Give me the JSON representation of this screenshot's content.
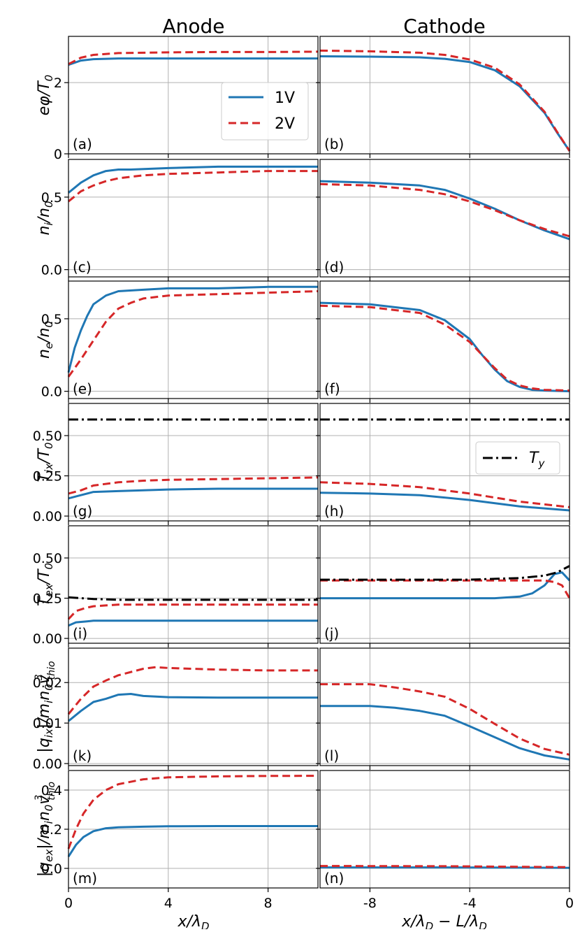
{
  "column_titles": [
    "Anode",
    "Cathode"
  ],
  "x_labels": [
    "x/λ_D",
    "x/λ_D − L/λ_D"
  ],
  "row_ylabels": [
    "eφ/T_0",
    "n_i/n_0",
    "n_e/n_0",
    "T_ix/T_0",
    "T_ex/T_0",
    "|q_ix|/m_i n_0 v^3_thio",
    "|q_ex|/m_i n_0 v^3_thio"
  ],
  "legends": {
    "main": [
      "1V",
      "2V"
    ],
    "ty": "T_y"
  },
  "colors": {
    "1V": "#1f77b4",
    "2V": "#d62728",
    "Ty": "#000000"
  },
  "chart_data": [
    {
      "type": "line",
      "panel_label": "(a)",
      "xlim": [
        0,
        10
      ],
      "ylim": [
        0,
        3.3
      ],
      "yticks": [
        "0",
        "2"
      ],
      "ytick_values": [
        0,
        2
      ],
      "series": [
        {
          "name": "1V",
          "x": [
            0,
            0.5,
            1,
            2,
            4,
            6,
            8,
            10
          ],
          "y": [
            2.5,
            2.62,
            2.66,
            2.68,
            2.68,
            2.68,
            2.68,
            2.68
          ]
        },
        {
          "name": "2V",
          "x": [
            0,
            0.5,
            1,
            2,
            4,
            6,
            8,
            10
          ],
          "y": [
            2.52,
            2.7,
            2.78,
            2.83,
            2.85,
            2.86,
            2.86,
            2.87
          ]
        }
      ]
    },
    {
      "type": "line",
      "panel_label": "(b)",
      "xlim": [
        -10,
        0
      ],
      "ylim": [
        0,
        3.3
      ],
      "yticks": [
        "0",
        "2"
      ],
      "ytick_values": [
        0,
        2
      ],
      "series": [
        {
          "name": "1V",
          "x": [
            -10,
            -8,
            -6,
            -5,
            -4,
            -3,
            -2,
            -1,
            -0.5,
            0
          ],
          "y": [
            2.74,
            2.73,
            2.71,
            2.67,
            2.58,
            2.35,
            1.9,
            1.15,
            0.6,
            0.08
          ]
        },
        {
          "name": "2V",
          "x": [
            -10,
            -8,
            -6,
            -5,
            -4,
            -3,
            -2,
            -1,
            -0.5,
            0
          ],
          "y": [
            2.9,
            2.88,
            2.84,
            2.78,
            2.65,
            2.42,
            1.95,
            1.18,
            0.62,
            0.08
          ]
        }
      ]
    },
    {
      "type": "line",
      "panel_label": "(c)",
      "xlim": [
        0,
        10
      ],
      "ylim": [
        -0.05,
        0.76
      ],
      "yticks": [
        "0.0",
        "0.5"
      ],
      "ytick_values": [
        0,
        0.5
      ],
      "series": [
        {
          "name": "1V",
          "x": [
            0,
            0.5,
            1,
            1.5,
            2,
            2.5,
            4,
            6,
            8,
            10
          ],
          "y": [
            0.53,
            0.6,
            0.65,
            0.68,
            0.69,
            0.69,
            0.7,
            0.71,
            0.71,
            0.71
          ]
        },
        {
          "name": "2V",
          "x": [
            0,
            0.5,
            1,
            1.5,
            2,
            3,
            4,
            6,
            8,
            10
          ],
          "y": [
            0.47,
            0.54,
            0.58,
            0.61,
            0.63,
            0.65,
            0.66,
            0.67,
            0.68,
            0.68
          ]
        }
      ]
    },
    {
      "type": "line",
      "panel_label": "(d)",
      "xlim": [
        -10,
        0
      ],
      "ylim": [
        -0.05,
        0.76
      ],
      "yticks": [
        "0.0",
        "0.5"
      ],
      "ytick_values": [
        0,
        0.5
      ],
      "series": [
        {
          "name": "1V",
          "x": [
            -10,
            -8,
            -6,
            -5,
            -4,
            -3,
            -2,
            -1,
            0
          ],
          "y": [
            0.61,
            0.6,
            0.58,
            0.55,
            0.49,
            0.42,
            0.34,
            0.27,
            0.21
          ]
        },
        {
          "name": "2V",
          "x": [
            -10,
            -8,
            -6,
            -5,
            -4,
            -3,
            -2,
            -1,
            0
          ],
          "y": [
            0.59,
            0.58,
            0.55,
            0.52,
            0.47,
            0.41,
            0.34,
            0.28,
            0.23
          ]
        }
      ]
    },
    {
      "type": "line",
      "panel_label": "(e)",
      "xlim": [
        0,
        10
      ],
      "ylim": [
        -0.05,
        0.76
      ],
      "yticks": [
        "0.0",
        "0.5"
      ],
      "ytick_values": [
        0,
        0.5
      ],
      "series": [
        {
          "name": "1V",
          "x": [
            0,
            0.25,
            0.5,
            0.75,
            1,
            1.5,
            2,
            3,
            4,
            6,
            8,
            10
          ],
          "y": [
            0.13,
            0.3,
            0.42,
            0.52,
            0.6,
            0.66,
            0.69,
            0.7,
            0.71,
            0.71,
            0.72,
            0.72
          ]
        },
        {
          "name": "2V",
          "x": [
            0,
            0.5,
            1,
            1.5,
            2,
            2.5,
            3,
            4,
            6,
            8,
            10
          ],
          "y": [
            0.1,
            0.22,
            0.35,
            0.48,
            0.57,
            0.61,
            0.64,
            0.66,
            0.67,
            0.68,
            0.69
          ]
        }
      ]
    },
    {
      "type": "line",
      "panel_label": "(f)",
      "xlim": [
        -10,
        0
      ],
      "ylim": [
        -0.05,
        0.76
      ],
      "yticks": [
        "0.0",
        "0.5"
      ],
      "ytick_values": [
        0,
        0.5
      ],
      "series": [
        {
          "name": "1V",
          "x": [
            -10,
            -8,
            -6,
            -5,
            -4,
            -3.5,
            -3,
            -2.5,
            -2,
            -1.5,
            -1,
            0
          ],
          "y": [
            0.61,
            0.6,
            0.56,
            0.49,
            0.36,
            0.25,
            0.15,
            0.07,
            0.03,
            0.01,
            0.005,
            0.0
          ]
        },
        {
          "name": "2V",
          "x": [
            -10,
            -8,
            -6,
            -5,
            -4,
            -3.5,
            -3,
            -2.5,
            -2,
            -1.5,
            -1,
            0
          ],
          "y": [
            0.59,
            0.58,
            0.54,
            0.46,
            0.34,
            0.25,
            0.16,
            0.08,
            0.04,
            0.02,
            0.01,
            0.005
          ]
        }
      ]
    },
    {
      "type": "line",
      "panel_label": "(g)",
      "xlim": [
        0,
        10
      ],
      "ylim": [
        -0.03,
        0.7
      ],
      "yticks": [
        "0.00",
        "0.25",
        "0.50"
      ],
      "ytick_values": [
        0,
        0.25,
        0.5
      ],
      "series": [
        {
          "name": "1V",
          "x": [
            0,
            0.5,
            1,
            2,
            3,
            4,
            6,
            8,
            10
          ],
          "y": [
            0.11,
            0.13,
            0.15,
            0.155,
            0.16,
            0.165,
            0.17,
            0.17,
            0.17
          ]
        },
        {
          "name": "2V",
          "x": [
            0,
            0.5,
            1,
            2,
            3,
            4,
            6,
            8,
            10
          ],
          "y": [
            0.14,
            0.16,
            0.19,
            0.21,
            0.22,
            0.225,
            0.23,
            0.235,
            0.24
          ]
        },
        {
          "name": "T_y",
          "x": [
            0,
            10
          ],
          "y": [
            0.6,
            0.6
          ]
        }
      ]
    },
    {
      "type": "line",
      "panel_label": "(h)",
      "xlim": [
        -10,
        0
      ],
      "ylim": [
        -0.03,
        0.7
      ],
      "yticks": [
        "0.00",
        "0.25",
        "0.50"
      ],
      "ytick_values": [
        0,
        0.25,
        0.5
      ],
      "series": [
        {
          "name": "1V",
          "x": [
            -10,
            -8,
            -6,
            -4,
            -2,
            0
          ],
          "y": [
            0.145,
            0.14,
            0.13,
            0.1,
            0.06,
            0.035
          ]
        },
        {
          "name": "2V",
          "x": [
            -10,
            -8,
            -6,
            -4,
            -2,
            0
          ],
          "y": [
            0.21,
            0.2,
            0.18,
            0.14,
            0.09,
            0.055
          ]
        },
        {
          "name": "T_y",
          "x": [
            -10,
            0
          ],
          "y": [
            0.6,
            0.6
          ]
        }
      ]
    },
    {
      "type": "line",
      "panel_label": "(i)",
      "xlim": [
        0,
        10
      ],
      "ylim": [
        -0.03,
        0.7
      ],
      "yticks": [
        "0.00",
        "0.25",
        "0.50"
      ],
      "ytick_values": [
        0,
        0.25,
        0.5
      ],
      "series": [
        {
          "name": "1V",
          "x": [
            0,
            0.3,
            0.7,
            1,
            2,
            4,
            6,
            8,
            10
          ],
          "y": [
            0.08,
            0.1,
            0.105,
            0.11,
            0.11,
            0.11,
            0.11,
            0.11,
            0.11
          ]
        },
        {
          "name": "2V",
          "x": [
            0,
            0.3,
            0.7,
            1,
            1.5,
            2,
            4,
            6,
            8,
            10
          ],
          "y": [
            0.12,
            0.17,
            0.19,
            0.2,
            0.205,
            0.21,
            0.21,
            0.21,
            0.21,
            0.21
          ]
        },
        {
          "name": "T_y",
          "x": [
            0,
            1,
            2,
            4,
            6,
            8,
            10
          ],
          "y": [
            0.255,
            0.245,
            0.24,
            0.24,
            0.24,
            0.24,
            0.24
          ]
        }
      ]
    },
    {
      "type": "line",
      "panel_label": "(j)",
      "xlim": [
        -10,
        0
      ],
      "ylim": [
        -0.03,
        0.7
      ],
      "yticks": [
        "0.00",
        "0.25",
        "0.50"
      ],
      "ytick_values": [
        0,
        0.25,
        0.5
      ],
      "series": [
        {
          "name": "1V",
          "x": [
            -10,
            -6,
            -4,
            -3,
            -2,
            -1.5,
            -1,
            -0.6,
            -0.3,
            0
          ],
          "y": [
            0.25,
            0.25,
            0.25,
            0.25,
            0.26,
            0.28,
            0.33,
            0.4,
            0.41,
            0.36
          ]
        },
        {
          "name": "2V",
          "x": [
            -10,
            -6,
            -4,
            -3,
            -2,
            -1,
            -0.6,
            -0.3,
            0
          ],
          "y": [
            0.36,
            0.36,
            0.36,
            0.36,
            0.36,
            0.36,
            0.35,
            0.33,
            0.25
          ]
        },
        {
          "name": "T_y",
          "x": [
            -10,
            -6,
            -4,
            -3,
            -2,
            -1,
            -0.5,
            0
          ],
          "y": [
            0.365,
            0.365,
            0.365,
            0.37,
            0.375,
            0.39,
            0.41,
            0.45
          ]
        }
      ]
    },
    {
      "type": "line",
      "panel_label": "(k)",
      "xlim": [
        0,
        10
      ],
      "ylim": [
        -0.0005,
        0.0285
      ],
      "yticks": [
        "0.00",
        "0.01",
        "0.02"
      ],
      "ytick_values": [
        0,
        0.01,
        0.02
      ],
      "series": [
        {
          "name": "1V",
          "x": [
            0,
            0.5,
            1,
            1.5,
            2,
            2.5,
            3,
            4,
            6,
            8,
            10
          ],
          "y": [
            0.0105,
            0.013,
            0.0152,
            0.016,
            0.017,
            0.0172,
            0.0167,
            0.0164,
            0.0163,
            0.0163,
            0.0163
          ]
        },
        {
          "name": "2V",
          "x": [
            0,
            0.5,
            1,
            1.5,
            2,
            3,
            3.5,
            4,
            6,
            8,
            10
          ],
          "y": [
            0.0122,
            0.016,
            0.019,
            0.0205,
            0.0218,
            0.0234,
            0.0238,
            0.0236,
            0.0232,
            0.023,
            0.023
          ]
        }
      ]
    },
    {
      "type": "line",
      "panel_label": "(l)",
      "xlim": [
        -10,
        0
      ],
      "ylim": [
        -0.0005,
        0.0285
      ],
      "yticks": [
        "0.00",
        "0.01",
        "0.02"
      ],
      "ytick_values": [
        0,
        0.01,
        0.02
      ],
      "series": [
        {
          "name": "1V",
          "x": [
            -10,
            -8,
            -7,
            -6,
            -5,
            -4,
            -3,
            -2,
            -1,
            0
          ],
          "y": [
            0.0142,
            0.0142,
            0.0138,
            0.013,
            0.0118,
            0.0092,
            0.0065,
            0.0038,
            0.002,
            0.001
          ]
        },
        {
          "name": "2V",
          "x": [
            -10,
            -8,
            -7,
            -6,
            -5,
            -4,
            -3,
            -2,
            -1,
            0
          ],
          "y": [
            0.0196,
            0.0196,
            0.0188,
            0.0178,
            0.0165,
            0.0135,
            0.0098,
            0.0062,
            0.0036,
            0.0022
          ]
        }
      ]
    },
    {
      "type": "line",
      "panel_label": "(m)",
      "xlim": [
        0,
        10
      ],
      "ylim": [
        -0.1,
        0.5
      ],
      "yticks": [
        "0.0",
        "0.2",
        "0.4"
      ],
      "ytick_values": [
        0,
        0.2,
        0.4
      ],
      "series": [
        {
          "name": "1V",
          "x": [
            0,
            0.3,
            0.6,
            1,
            1.5,
            2,
            3,
            4,
            6,
            8,
            10
          ],
          "y": [
            0.06,
            0.12,
            0.16,
            0.19,
            0.205,
            0.21,
            0.213,
            0.215,
            0.216,
            0.216,
            0.216
          ]
        },
        {
          "name": "2V",
          "x": [
            0,
            0.3,
            0.6,
            1,
            1.5,
            2,
            3,
            4,
            6,
            8,
            10
          ],
          "y": [
            0.1,
            0.2,
            0.28,
            0.35,
            0.4,
            0.43,
            0.455,
            0.465,
            0.47,
            0.472,
            0.473
          ]
        }
      ]
    },
    {
      "type": "line",
      "panel_label": "(n)",
      "xlim": [
        -10,
        0
      ],
      "ylim": [
        -0.1,
        0.5
      ],
      "yticks": [
        "0.0",
        "0.2",
        "0.4"
      ],
      "ytick_values": [
        0,
        0.2,
        0.4
      ],
      "series": [
        {
          "name": "1V",
          "x": [
            -10,
            -5,
            0
          ],
          "y": [
            0.005,
            0.005,
            0.003
          ]
        },
        {
          "name": "2V",
          "x": [
            -10,
            -5,
            0
          ],
          "y": [
            0.012,
            0.011,
            0.006
          ]
        }
      ]
    }
  ],
  "xticks_left": [
    "0",
    "4",
    "8"
  ],
  "xtick_values_left": [
    0,
    4,
    8
  ],
  "xticks_right": [
    "-8",
    "-4",
    "0"
  ],
  "xtick_values_right": [
    -8,
    -4,
    0
  ]
}
